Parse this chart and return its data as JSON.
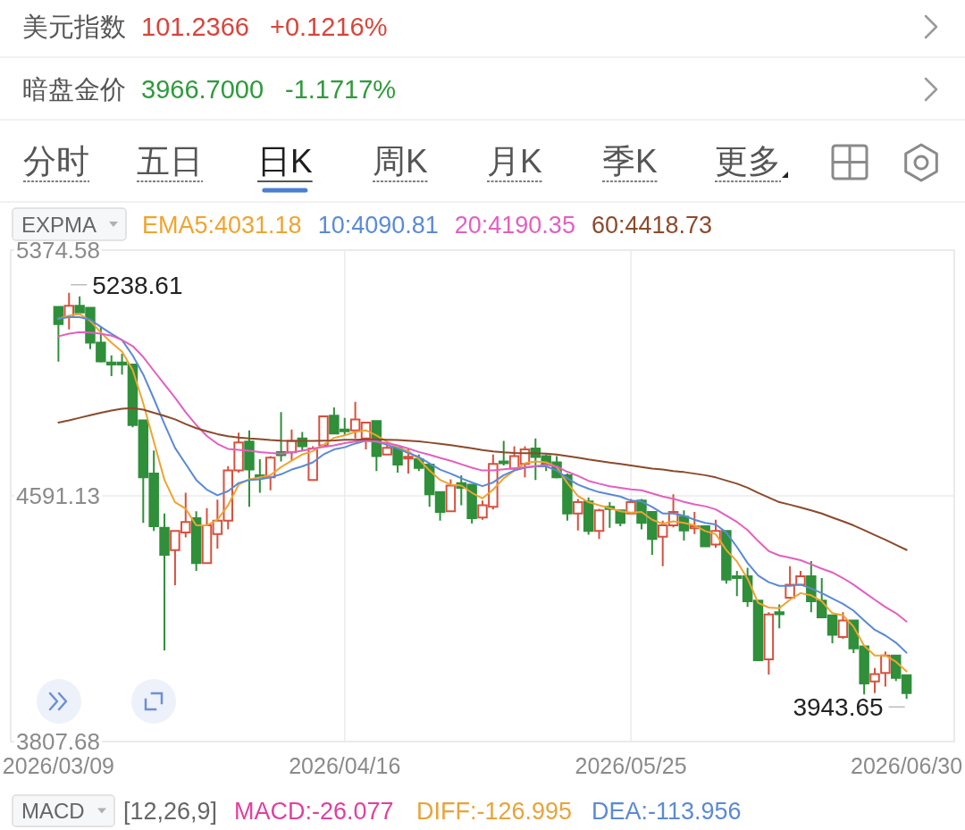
{
  "chart_data": {
    "type": "candlestick",
    "categories": [
      "2026/03/09",
      null,
      null,
      null,
      null,
      null,
      null,
      null,
      null,
      null,
      null,
      null,
      null,
      null,
      null,
      null,
      null,
      null,
      null,
      null,
      null,
      null,
      null,
      null,
      null,
      null,
      null,
      "2026/04/16",
      null,
      null,
      null,
      null,
      null,
      null,
      null,
      null,
      null,
      null,
      null,
      null,
      null,
      null,
      null,
      null,
      null,
      null,
      null,
      null,
      null,
      null,
      null,
      null,
      null,
      null,
      "2026/05/25",
      null,
      null,
      null,
      null,
      null,
      null,
      null,
      null,
      null,
      null,
      null,
      null,
      null,
      null,
      null,
      null,
      null,
      null,
      null,
      null,
      null,
      null,
      null,
      null,
      null,
      "2026/06/30"
    ],
    "ohlc": [
      [
        5194,
        5194,
        5019,
        5139
      ],
      [
        5161,
        5238.61,
        5122,
        5197
      ],
      [
        5197,
        5227,
        5176,
        5176
      ],
      [
        5191,
        5191,
        5059,
        5080
      ],
      [
        5080,
        5130,
        5016,
        5020
      ],
      [
        5016,
        5039,
        4973,
        5010
      ],
      [
        5016,
        5044,
        4978,
        5010
      ],
      [
        5010,
        5013,
        4810,
        4817
      ],
      [
        4832,
        4832,
        4505,
        4650
      ],
      [
        4662,
        4736,
        4479,
        4494
      ],
      [
        4489,
        4535,
        4098,
        4403
      ],
      [
        4418,
        4479,
        4306,
        4479
      ],
      [
        4474,
        4601,
        4459,
        4508
      ],
      [
        4520,
        4542,
        4352,
        4377
      ],
      [
        4377,
        4552,
        4377,
        4497
      ],
      [
        4469,
        4579,
        4423,
        4512
      ],
      [
        4512,
        4686,
        4484,
        4672
      ],
      [
        4672,
        4793,
        4665,
        4761
      ],
      [
        4764,
        4800,
        4556,
        4675
      ],
      [
        4657,
        4708,
        4601,
        4651
      ],
      [
        4650,
        4718,
        4609,
        4713
      ],
      [
        4731,
        4858,
        4701,
        4721
      ],
      [
        4730,
        4803,
        4703,
        4766
      ],
      [
        4774,
        4795,
        4734,
        4749
      ],
      [
        4642,
        4749,
        4640,
        4742
      ],
      [
        4752,
        4845,
        4752,
        4845
      ],
      [
        4847,
        4873,
        4790,
        4790
      ],
      [
        4803,
        4840,
        4784,
        4797
      ],
      [
        4800,
        4891,
        4774,
        4835
      ],
      [
        4774,
        4825,
        4739,
        4825
      ],
      [
        4830,
        4830,
        4670,
        4718
      ],
      [
        4723,
        4759,
        4721,
        4744
      ],
      [
        4746,
        4746,
        4665,
        4691
      ],
      [
        4710,
        4739,
        4662,
        4716
      ],
      [
        4708,
        4723,
        4670,
        4680
      ],
      [
        4691,
        4691,
        4556,
        4596
      ],
      [
        4603,
        4606,
        4512,
        4540
      ],
      [
        4542,
        4644,
        4542,
        4624
      ],
      [
        4632,
        4657,
        4561,
        4617
      ],
      [
        4627,
        4627,
        4503,
        4520
      ],
      [
        4522,
        4576,
        4515,
        4561
      ],
      [
        4556,
        4723,
        4548,
        4693
      ],
      [
        4701,
        4766,
        4688,
        4695
      ],
      [
        4678,
        4749,
        4672,
        4718
      ],
      [
        4693,
        4749,
        4650,
        4739
      ],
      [
        4742,
        4774,
        4642,
        4715
      ],
      [
        4718,
        4723,
        4670,
        4691
      ],
      [
        4698,
        4718,
        4647,
        4650
      ],
      [
        4657,
        4662,
        4512,
        4535
      ],
      [
        4535,
        4581,
        4481,
        4571
      ],
      [
        4573,
        4586,
        4467,
        4479
      ],
      [
        4479,
        4550,
        4454,
        4545
      ],
      [
        4556,
        4571,
        4489,
        4549
      ],
      [
        4545,
        4545,
        4494,
        4505
      ],
      [
        4535,
        4581,
        4532,
        4571
      ],
      [
        4576,
        4581,
        4484,
        4505
      ],
      [
        4540,
        4540,
        4403,
        4454
      ],
      [
        4461,
        4512,
        4367,
        4497
      ],
      [
        4497,
        4596,
        4491,
        4540
      ],
      [
        4525,
        4545,
        4449,
        4481
      ],
      [
        4488,
        4540,
        4469,
        4494
      ],
      [
        4494,
        4494,
        4428,
        4430
      ],
      [
        4436,
        4515,
        4426,
        4479
      ],
      [
        4479,
        4479,
        4311,
        4324
      ],
      [
        4335,
        4352,
        4271,
        4329
      ],
      [
        4335,
        4362,
        4237,
        4255
      ],
      [
        4257,
        4257,
        4067,
        4067
      ],
      [
        4070,
        4220,
        4021,
        4213
      ],
      [
        4220,
        4245,
        4169,
        4214
      ],
      [
        4266,
        4367,
        4264,
        4308
      ],
      [
        4308,
        4352,
        4306,
        4335
      ],
      [
        4335,
        4383,
        4220,
        4255
      ],
      [
        4257,
        4329,
        4202,
        4204
      ],
      [
        4210,
        4210,
        4121,
        4148
      ],
      [
        4141,
        4220,
        4135,
        4194
      ],
      [
        4194,
        4196,
        4090,
        4105
      ],
      [
        4111,
        4111,
        3958,
        3993
      ],
      [
        3999,
        4042,
        3962,
        4023
      ],
      [
        4026,
        4095,
        3983,
        4082
      ],
      [
        4082,
        4084,
        4001,
        4011
      ],
      [
        4019,
        4019,
        3943.65,
        3962
      ]
    ],
    "series": [
      {
        "name": "EMA5:4031.18",
        "type": "line",
        "color": "#f0a32f",
        "values": [
          5156,
          5166,
          5171,
          5149,
          5112,
          5080,
          5051,
          4993,
          4886,
          4764,
          4642,
          4571,
          4550,
          4497,
          4497,
          4515,
          4561,
          4627,
          4644,
          4650,
          4657,
          4683,
          4703,
          4723,
          4734,
          4754,
          4776,
          4784,
          4795,
          4800,
          4784,
          4764,
          4746,
          4734,
          4708,
          4672,
          4642,
          4627,
          4624,
          4601,
          4583,
          4611,
          4647,
          4672,
          4695,
          4701,
          4698,
          4683,
          4632,
          4591,
          4571,
          4561,
          4552,
          4542,
          4538,
          4540,
          4515,
          4502,
          4510,
          4505,
          4497,
          4479,
          4469,
          4418,
          4382,
          4327,
          4250,
          4235,
          4233,
          4260,
          4281,
          4274,
          4255,
          4217,
          4210,
          4174,
          4113,
          4082,
          4082,
          4062,
          4031.18
        ]
      },
      {
        "name": "10:4090.81",
        "type": "line",
        "color": "#5a8ad6",
        "values": [
          5156,
          5161,
          5161,
          5153,
          5130,
          5108,
          5088,
          5039,
          4978,
          4901,
          4820,
          4744,
          4693,
          4642,
          4611,
          4593,
          4606,
          4632,
          4642,
          4644,
          4650,
          4660,
          4675,
          4685,
          4698,
          4723,
          4739,
          4746,
          4758,
          4767,
          4764,
          4754,
          4742,
          4728,
          4715,
          4695,
          4675,
          4662,
          4647,
          4634,
          4622,
          4634,
          4657,
          4672,
          4681,
          4685,
          4685,
          4672,
          4647,
          4627,
          4614,
          4603,
          4596,
          4589,
          4576,
          4573,
          4556,
          4535,
          4535,
          4528,
          4515,
          4505,
          4500,
          4474,
          4428,
          4377,
          4337,
          4316,
          4304,
          4304,
          4308,
          4296,
          4281,
          4264,
          4247,
          4225,
          4194,
          4164,
          4146,
          4123,
          4090.81
        ]
      },
      {
        "name": "20:4190.35",
        "type": "line",
        "color": "#e35fc0",
        "values": [
          5100,
          5108,
          5113,
          5112,
          5108,
          5102,
          5088,
          5069,
          5034,
          4990,
          4947,
          4904,
          4858,
          4817,
          4782,
          4757,
          4741,
          4738,
          4735,
          4731,
          4728,
          4726,
          4730,
          4735,
          4742,
          4747,
          4752,
          4759,
          4764,
          4768,
          4764,
          4759,
          4752,
          4742,
          4731,
          4722,
          4712,
          4703,
          4692,
          4681,
          4672,
          4672,
          4676,
          4679,
          4682,
          4686,
          4690,
          4685,
          4668,
          4655,
          4639,
          4630,
          4622,
          4617,
          4612,
          4609,
          4599,
          4589,
          4582,
          4572,
          4564,
          4558,
          4548,
          4528,
          4508,
          4482,
          4447,
          4415,
          4401,
          4394,
          4386,
          4373,
          4359,
          4347,
          4329,
          4308,
          4284,
          4260,
          4237,
          4217,
          4190.35
        ]
      },
      {
        "name": "60:4418.73",
        "type": "line",
        "color": "#8b4a2b",
        "values": [
          4825,
          4832,
          4840,
          4848,
          4856,
          4863,
          4869,
          4871,
          4866,
          4856,
          4846,
          4835,
          4820,
          4807,
          4797,
          4788,
          4781,
          4777,
          4774,
          4772,
          4769,
          4767,
          4766,
          4766,
          4766,
          4767,
          4768,
          4770,
          4770,
          4771,
          4771,
          4770,
          4769,
          4767,
          4765,
          4761,
          4757,
          4753,
          4748,
          4743,
          4737,
          4733,
          4730,
          4728,
          4727,
          4727,
          4726,
          4723,
          4718,
          4713,
          4707,
          4702,
          4697,
          4693,
          4688,
          4683,
          4678,
          4675,
          4670,
          4667,
          4662,
          4657,
          4650,
          4640,
          4630,
          4617,
          4601,
          4586,
          4571,
          4563,
          4554,
          4545,
          4535,
          4522,
          4510,
          4497,
          4482,
          4466,
          4451,
          4435,
          4418.73
        ]
      }
    ],
    "ylim": [
      3807.68,
      5374.58
    ],
    "yticks": [
      3807.68,
      4591.13,
      5374.58
    ],
    "grid": true,
    "legend": "top left",
    "annotations": [
      "美元指数",
      "101.2366",
      "+0.1216%",
      "暗盘金价",
      "3966.7000",
      "-1.1717%",
      "分时",
      "五日",
      "日K",
      "周K",
      "月K",
      "季K",
      "更多",
      "EXPMA",
      "MACD",
      "[12,26,9]",
      "MACD:-26.077",
      "DIFF:-126.995",
      "DEA:-113.956",
      "5238.61",
      "3943.65"
    ]
  }
}
